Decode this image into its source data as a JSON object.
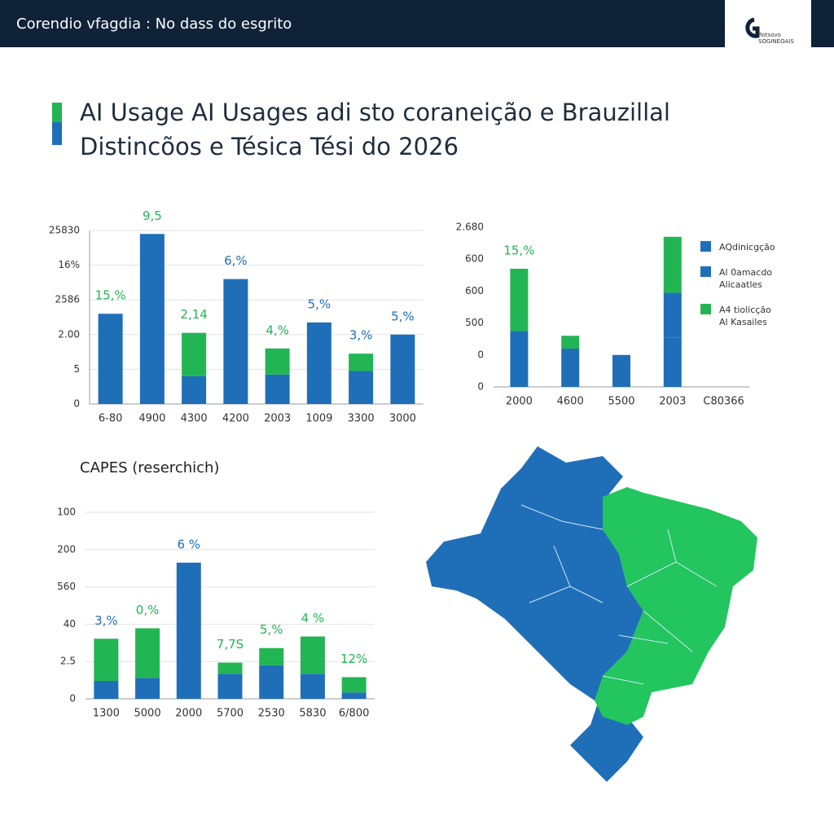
{
  "header": {
    "title": "Corendio vfagdia : No dass do esgrito",
    "logo": [
      "Rotsovo",
      "SOGINEOAIS"
    ]
  },
  "title": [
    "AI Usage AI Usages adi sto coraneição e Brauzillal",
    "Distincõos e Tésica Tési do 2026"
  ],
  "chart_data": [
    {
      "type": "bar",
      "categories": [
        "6-80",
        "4900",
        "4300",
        "4200",
        "2003",
        "1009",
        "3300",
        "3000"
      ],
      "series": [
        {
          "color": "#1f6fb8",
          "values": [
            2.6,
            4.9,
            0.8,
            3.6,
            0.85,
            2.35,
            0.95,
            2.0
          ]
        },
        {
          "color": "#22b554",
          "values": [
            null,
            null,
            1.25,
            null,
            0.75,
            null,
            0.5,
            null
          ]
        }
      ],
      "bar_labels": [
        {
          "text": "15,%",
          "color": "#22b554"
        },
        {
          "text": "9,5",
          "color": "#22b554"
        },
        {
          "text": "2,14",
          "color": "#22b554"
        },
        {
          "text": "6,%",
          "color": "#1f6fb8"
        },
        {
          "text": "4,%",
          "color": "#22b554"
        },
        {
          "text": "5,%",
          "color": "#1f6fb8"
        },
        {
          "text": "3,%",
          "color": "#1f6fb8"
        },
        {
          "text": "5,%",
          "color": "#1f6fb8"
        }
      ],
      "ylim": [
        0,
        5
      ],
      "yticks": [
        0,
        {
          "value": 1,
          "label": "5"
        },
        {
          "value": 2,
          "label": "2.00"
        },
        {
          "value": 3,
          "label": "2586"
        },
        {
          "value": 4,
          "label": "16%"
        },
        {
          "value": 5,
          "label": "25830"
        }
      ],
      "grid": true
    },
    {
      "type": "bar",
      "categories": [
        "2000",
        "4600",
        "5500",
        "2003",
        "C80366"
      ],
      "series": [
        {
          "name": "AQdinicgção",
          "color": "#1f6fb8",
          "values": [
            1.75,
            1.2,
            1.0,
            1.55,
            0
          ]
        },
        {
          "name": "Al 0amacdo\nAlicaatles",
          "color": "#1f6fb8",
          "values": [
            0,
            0,
            0,
            1.4,
            0
          ]
        },
        {
          "name": "A4 tiolicção\nAl Kasailes",
          "color": "#22b554",
          "values": [
            1.95,
            0.4,
            0,
            1.75,
            0
          ]
        }
      ],
      "bar_labels": [
        {
          "text": "15,%",
          "color": "#22b554"
        },
        null,
        null,
        null,
        null
      ],
      "ylim": [
        0,
        5
      ],
      "yticks": [
        0,
        {
          "value": 1,
          "label": "0"
        },
        {
          "value": 2,
          "label": "500"
        },
        {
          "value": 3,
          "label": "600"
        },
        {
          "value": 4,
          "label": "600"
        },
        {
          "value": 5,
          "label": "2.680"
        }
      ],
      "grid": false,
      "legend": "right"
    },
    {
      "type": "bar",
      "title": "CAPES (reserchich)",
      "categories": [
        "1300",
        "5000",
        "2000",
        "5700",
        "2530",
        "5830",
        "6/800"
      ],
      "series": [
        {
          "color": "#1f6fb8",
          "values": [
            0.48,
            0.56,
            3.65,
            0.67,
            0.9,
            0.67,
            0.17
          ]
        },
        {
          "color": "#22b554",
          "values": [
            1.13,
            1.33,
            null,
            0.3,
            0.46,
            1.0,
            0.41
          ]
        }
      ],
      "bar_labels": [
        {
          "text": "3,%",
          "color": "#1f6fb8"
        },
        {
          "text": "0,%",
          "color": "#22b554"
        },
        {
          "text": "6 %",
          "color": "#1f6fb8"
        },
        {
          "text": "7,7S",
          "color": "#22b554"
        },
        {
          "text": "5,%",
          "color": "#22b554"
        },
        {
          "text": "4 %",
          "color": "#22b554"
        },
        {
          "text": "12%",
          "color": "#22b554"
        }
      ],
      "ylim": [
        0,
        5
      ],
      "yticks": [
        0,
        {
          "value": 1,
          "label": "2.5"
        },
        {
          "value": 2,
          "label": "40"
        },
        {
          "value": 3,
          "label": "560"
        },
        {
          "value": 4,
          "label": "200"
        },
        {
          "value": 5,
          "label": "100"
        }
      ],
      "grid": true
    }
  ]
}
